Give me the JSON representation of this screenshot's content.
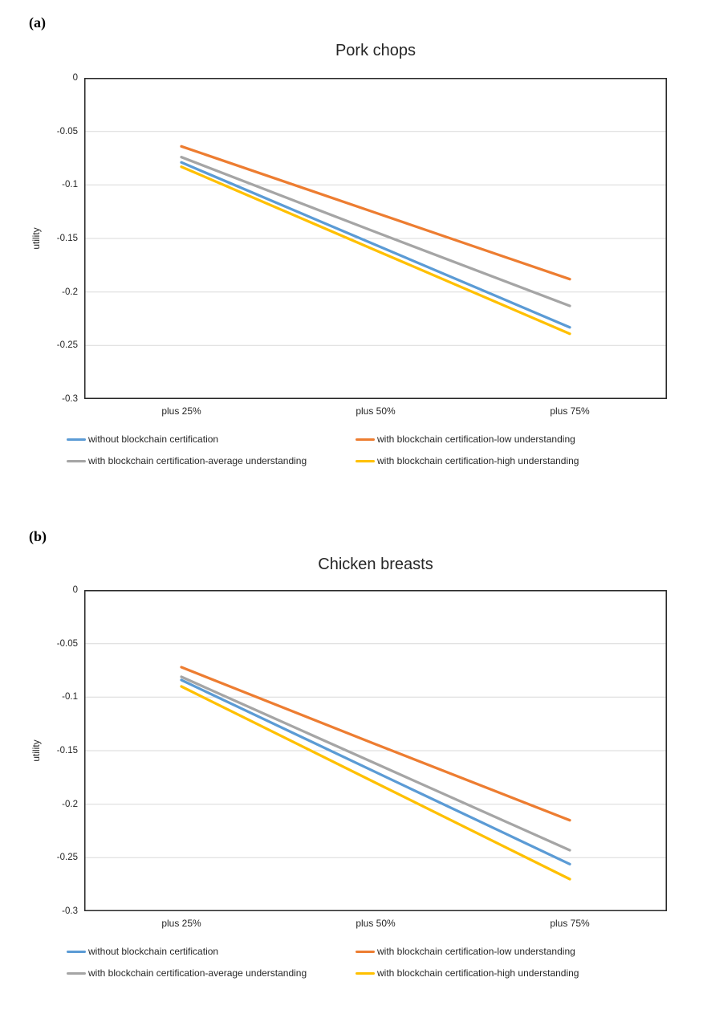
{
  "page": {
    "background": "#FFFFFF",
    "text_color": "#262626"
  },
  "chart_data": [
    {
      "type": "line",
      "panel_label": "(a)",
      "title": "Pork chops",
      "ylabel": "utility",
      "xlabel": "",
      "categories": [
        "plus 25%",
        "plus 50%",
        "plus 75%"
      ],
      "ylim": [
        -0.3,
        0
      ],
      "yticks": [
        0,
        -0.05,
        -0.1,
        -0.15,
        -0.2,
        -0.25,
        -0.3
      ],
      "ytick_labels": [
        "0",
        "-0.05",
        "-0.1",
        "-0.15",
        "-0.2",
        "-0.25",
        "-0.3"
      ],
      "grid": true,
      "gridline_color": "#D9D9D9",
      "legend_position": "bottom",
      "series": [
        {
          "name": "without blockchain certification",
          "color": "#5B9BD5",
          "values": [
            -0.079,
            -0.156,
            -0.233
          ]
        },
        {
          "name": "with blockchain certification-low understanding",
          "color": "#ED7D31",
          "values": [
            -0.064,
            -0.126,
            -0.188
          ]
        },
        {
          "name": "with blockchain certification-average understanding",
          "color": "#A5A5A5",
          "values": [
            -0.074,
            -0.144,
            -0.213
          ]
        },
        {
          "name": "with blockchain certification-high understanding",
          "color": "#FFC000",
          "values": [
            -0.083,
            -0.161,
            -0.239
          ]
        }
      ]
    },
    {
      "type": "line",
      "panel_label": "(b)",
      "title": "Chicken breasts",
      "ylabel": "utility",
      "xlabel": "",
      "categories": [
        "plus 25%",
        "plus 50%",
        "plus 75%"
      ],
      "ylim": [
        -0.3,
        0
      ],
      "yticks": [
        0,
        -0.05,
        -0.1,
        -0.15,
        -0.2,
        -0.25,
        -0.3
      ],
      "ytick_labels": [
        "0",
        "-0.05",
        "-0.1",
        "-0.15",
        "-0.2",
        "-0.25",
        "-0.3"
      ],
      "grid": true,
      "gridline_color": "#D9D9D9",
      "legend_position": "bottom",
      "series": [
        {
          "name": "without blockchain certification",
          "color": "#5B9BD5",
          "values": [
            -0.084,
            -0.17,
            -0.256
          ]
        },
        {
          "name": "with blockchain certification-low understanding",
          "color": "#ED7D31",
          "values": [
            -0.072,
            -0.144,
            -0.215
          ]
        },
        {
          "name": "with blockchain certification-average understanding",
          "color": "#A5A5A5",
          "values": [
            -0.081,
            -0.162,
            -0.243
          ]
        },
        {
          "name": "with blockchain certification-high understanding",
          "color": "#FFC000",
          "values": [
            -0.09,
            -0.18,
            -0.27
          ]
        }
      ]
    }
  ]
}
